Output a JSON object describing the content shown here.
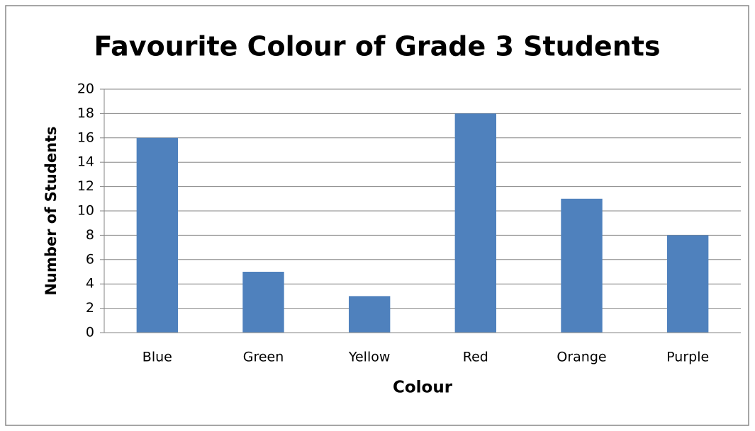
{
  "chart_data": {
    "type": "bar",
    "title": "Favourite Colour of Grade 3 Students",
    "x_label": "Colour",
    "y_label": "Number of Students",
    "categories": [
      "Blue",
      "Green",
      "Yellow",
      "Red",
      "Orange",
      "Purple"
    ],
    "values": [
      16,
      5,
      3,
      18,
      11,
      8
    ],
    "color": "#4f81bd",
    "ylim": [
      0,
      20
    ],
    "yticks": [
      0,
      2,
      4,
      6,
      8,
      10,
      12,
      14,
      16,
      18,
      20
    ],
    "grid": true
  }
}
